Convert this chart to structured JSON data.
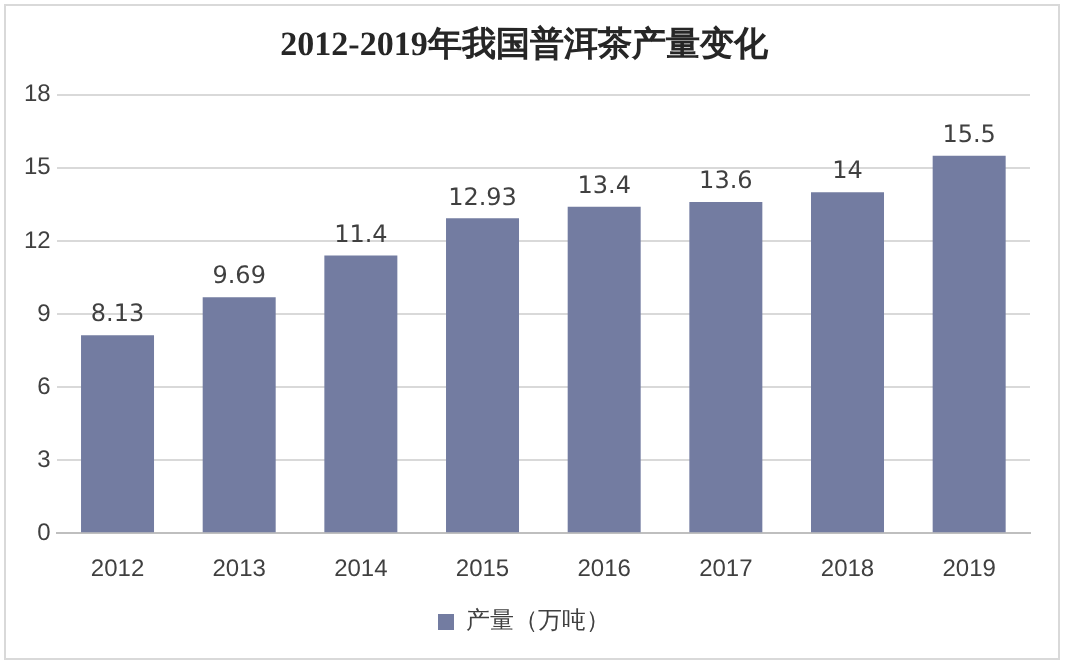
{
  "chart_data": {
    "type": "bar",
    "title": "2012-2019年我国普洱茶产量变化",
    "categories": [
      "2012",
      "2013",
      "2014",
      "2015",
      "2016",
      "2017",
      "2018",
      "2019"
    ],
    "series": [
      {
        "name": "产量（万吨）",
        "color": "#737ca1",
        "values": [
          8.13,
          9.69,
          11.4,
          12.93,
          13.4,
          13.6,
          14,
          15.5
        ]
      }
    ],
    "ylim": [
      0,
      18
    ],
    "yticks": [
      0,
      3,
      6,
      9,
      12,
      15,
      18
    ],
    "grid": "y",
    "legend": "bottom",
    "data_labels": true
  }
}
